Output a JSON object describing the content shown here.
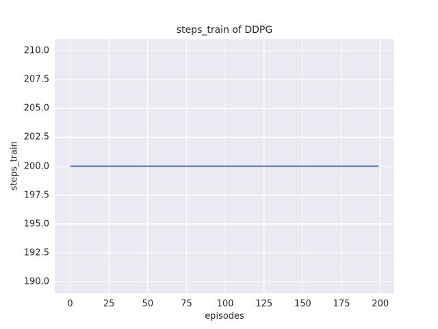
{
  "chart_data": {
    "type": "line",
    "title": "steps_train of DDPG",
    "xlabel": "episodes",
    "ylabel": "steps_train",
    "series": [
      {
        "name": "steps_train",
        "color": "#4c72b0",
        "x": [
          0,
          199
        ],
        "y": [
          200,
          200
        ],
        "constant_value": 200
      }
    ],
    "xlim": [
      -9.95,
      208.95
    ],
    "ylim": [
      189,
      211
    ],
    "xticks": [
      0,
      25,
      50,
      75,
      100,
      125,
      150,
      175,
      200
    ],
    "xtick_labels": [
      "0",
      "25",
      "50",
      "75",
      "100",
      "125",
      "150",
      "175",
      "200"
    ],
    "yticks": [
      190.0,
      192.5,
      195.0,
      197.5,
      200.0,
      202.5,
      205.0,
      207.5,
      210.0
    ],
    "ytick_labels": [
      "190.0",
      "192.5",
      "195.0",
      "197.5",
      "200.0",
      "202.5",
      "205.0",
      "207.5",
      "210.0"
    ],
    "grid": true,
    "legend": false,
    "plot_bg_color": "#eaeaf2",
    "grid_color": "#ffffff",
    "text_color": "#262626"
  }
}
